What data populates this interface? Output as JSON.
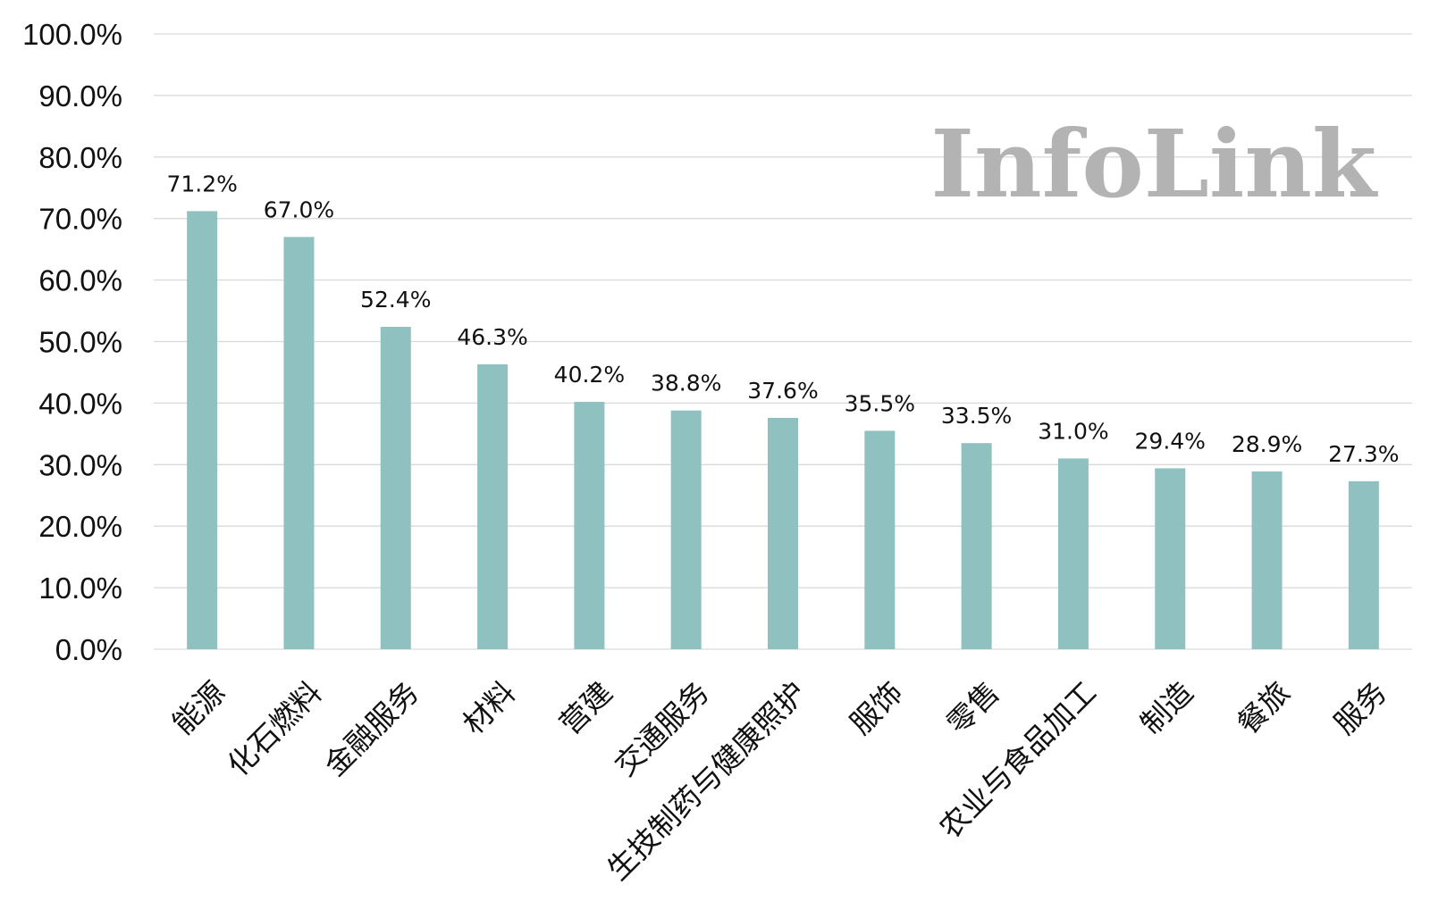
{
  "chart_data": {
    "type": "bar",
    "categories": [
      "能源",
      "化石燃料",
      "金融服务",
      "材料",
      "营建",
      "交通服务",
      "生技制药与健康照护",
      "服饰",
      "零售",
      "农业与食品加工",
      "制造",
      "餐旅",
      "服务"
    ],
    "values": [
      71.2,
      67.0,
      52.4,
      46.3,
      40.2,
      38.8,
      37.6,
      35.5,
      33.5,
      31.0,
      29.4,
      28.9,
      27.3
    ],
    "data_labels": [
      "71.2%",
      "67.0%",
      "52.4%",
      "46.3%",
      "40.2%",
      "38.8%",
      "37.6%",
      "35.5%",
      "33.5%",
      "31.0%",
      "29.4%",
      "28.9%",
      "27.3%"
    ],
    "y_ticks": [
      "0.0%",
      "10.0%",
      "20.0%",
      "30.0%",
      "40.0%",
      "50.0%",
      "60.0%",
      "70.0%",
      "80.0%",
      "90.0%",
      "100.0%"
    ],
    "ylim": [
      0,
      100
    ],
    "grid": true,
    "bar_color": "#8fc1c1",
    "title": "",
    "xlabel": "",
    "ylabel": ""
  },
  "watermark": "InfoLink"
}
